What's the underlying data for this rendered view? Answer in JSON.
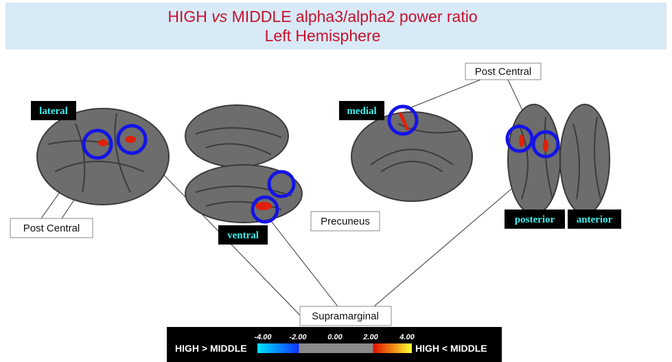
{
  "header": {
    "title_parts": [
      "HIGH",
      "vs",
      "MIDDLE alpha3/alpha2 power ratio"
    ],
    "subtitle": "Left Hemisphere"
  },
  "views": [
    "lateral",
    "ventral",
    "medial",
    "posterior",
    "anterior"
  ],
  "callouts": [
    "Post Central",
    "Post Central",
    "Precuneus",
    "Supramarginal"
  ],
  "colorbar": {
    "ticks": [
      "-4.00",
      "-2.00",
      "0.00",
      "2.00",
      "4.00"
    ],
    "left_label": "HIGH > MIDDLE",
    "right_label": "HIGH < MIDDLE"
  }
}
